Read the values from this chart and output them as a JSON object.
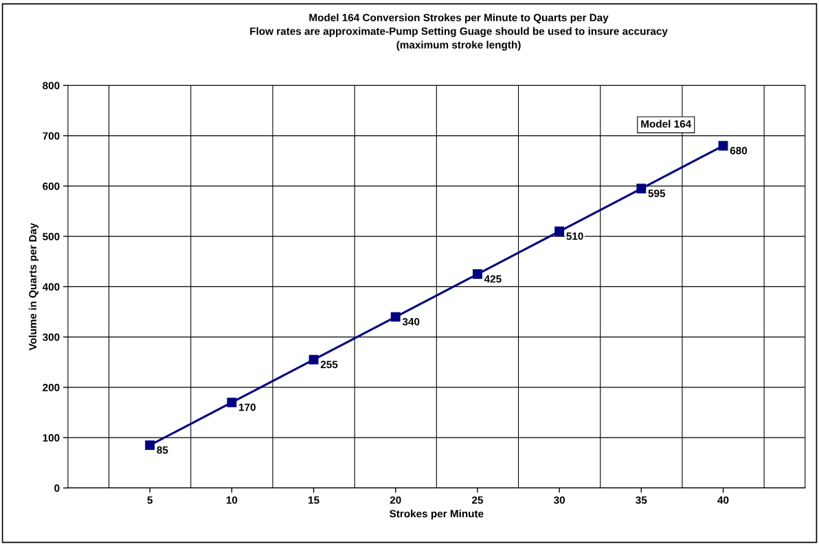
{
  "chart_data": {
    "type": "line",
    "title": "Model 164 Conversion Strokes per Minute to Quarts per Day\nFlow rates are approximate-Pump Setting Guage should be used to insure accuracy\n(maximum stroke length)",
    "xlabel": "Strokes per Minute",
    "ylabel": "Volume in Quarts per Day",
    "categories": [
      "5",
      "10",
      "15",
      "20",
      "25",
      "30",
      "35",
      "40"
    ],
    "series": [
      {
        "name": "Model 164",
        "color": "#000080",
        "values": [
          85,
          170,
          255,
          340,
          425,
          510,
          595,
          680
        ]
      }
    ],
    "ylim": [
      0,
      800
    ],
    "yticks": [
      0,
      100,
      200,
      300,
      400,
      500,
      600,
      700,
      800
    ],
    "grid": true,
    "marker": "square",
    "line_style": "solid",
    "data_labels": true
  }
}
